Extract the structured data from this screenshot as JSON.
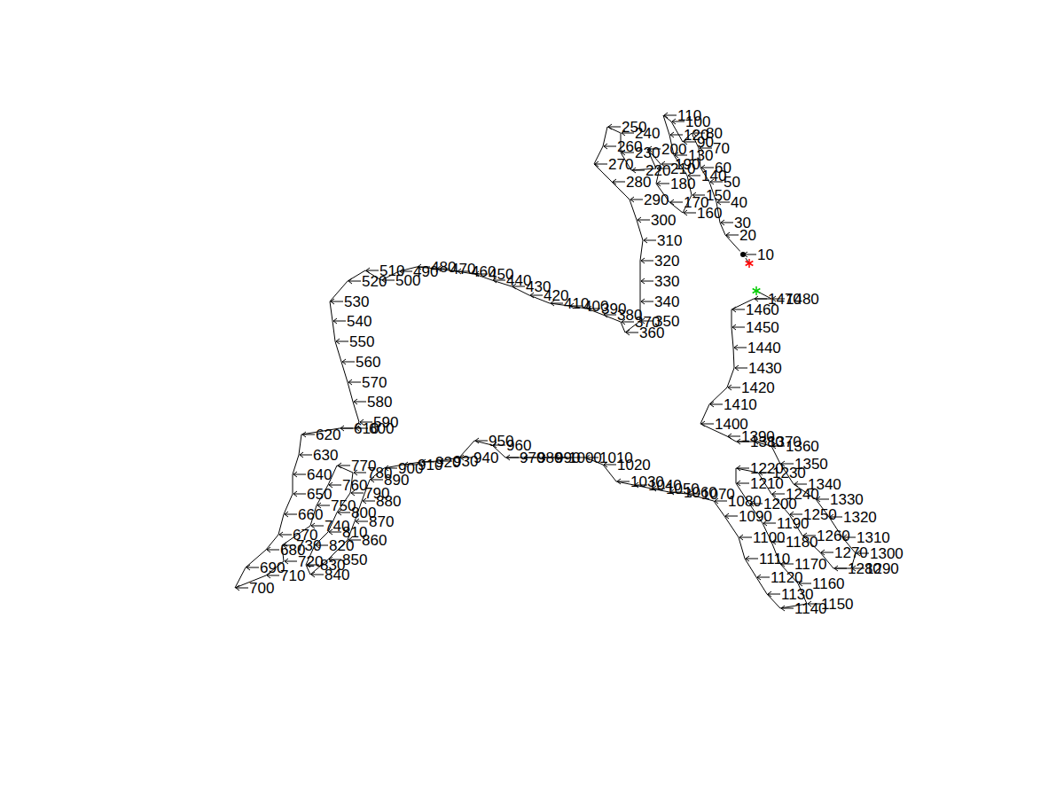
{
  "chart_data": {
    "type": "line",
    "color": "#000000",
    "marker": "none",
    "tick_labels": false,
    "grid": false,
    "xlim": [
      0,
      1200
    ],
    "ylim": [
      0,
      900
    ],
    "x": [
      845,
      838,
      818,
      812,
      808,
      800,
      790,
      788,
      780,
      770,
      757,
      748,
      755,
      760,
      775,
      780,
      770,
      755,
      740,
      745,
      730,
      740,
      712,
      700,
      700,
      685,
      680,
      670,
      690,
      710,
      718,
      725,
      722,
      722,
      722,
      722,
      705,
      700,
      680,
      662,
      642,
      620,
      597,
      577,
      555,
      535,
      515,
      492,
      470,
      450,
      430,
      412,
      392,
      372,
      375,
      378,
      385,
      392,
      398,
      405,
      400,
      383,
      340,
      337,
      330,
      330,
      320,
      314,
      300,
      277,
      265,
      300,
      320,
      318,
      350,
      357,
      370,
      380,
      398,
      395,
      380,
      370,
      355,
      345,
      350,
      370,
      392,
      400,
      408,
      417,
      433,
      455,
      475,
      495,
      518,
      535,
      555,
      570,
      590,
      610,
      625,
      660,
      680,
      695,
      715,
      735,
      755,
      775,
      805,
      817,
      833,
      840,
      853,
      865,
      880,
      910,
      900,
      880,
      870,
      860,
      845,
      830,
      830,
      855,
      870,
      890,
      905,
      925,
      940,
      960,
      965,
      950,
      935,
      920,
      895,
      880,
      870,
      850,
      830,
      820,
      790,
      800,
      820,
      828,
      827,
      825,
      825,
      850,
      870,
      853
    ],
    "y": [
      297,
      287,
      265,
      251,
      228,
      205,
      189,
      167,
      150,
      160,
      137,
      130,
      152,
      175,
      198,
      220,
      240,
      228,
      207,
      185,
      168,
      190,
      192,
      172,
      150,
      143,
      165,
      185,
      205,
      225,
      248,
      271,
      294,
      317,
      340,
      362,
      375,
      363,
      355,
      348,
      345,
      342,
      333,
      323,
      316,
      309,
      306,
      303,
      301,
      306,
      316,
      305,
      317,
      340,
      362,
      385,
      408,
      431,
      453,
      476,
      483,
      483,
      490,
      513,
      535,
      557,
      580,
      603,
      620,
      640,
      663,
      649,
      633,
      615,
      593,
      570,
      547,
      525,
      533,
      556,
      578,
      600,
      615,
      637,
      648,
      631,
      609,
      588,
      565,
      541,
      528,
      524,
      521,
      520,
      516,
      497,
      502,
      516,
      516,
      516,
      516,
      516,
      524,
      543,
      547,
      551,
      555,
      557,
      565,
      582,
      606,
      630,
      651,
      670,
      686,
      681,
      658,
      636,
      611,
      590,
      568,
      545,
      528,
      533,
      557,
      580,
      604,
      623,
      641,
      641,
      624,
      606,
      583,
      563,
      546,
      523,
      503,
      498,
      498,
      492,
      478,
      456,
      437,
      415,
      392,
      369,
      349,
      337,
      337,
      328
    ],
    "labels": [
      null,
      10,
      20,
      30,
      40,
      50,
      60,
      70,
      80,
      90,
      100,
      110,
      120,
      130,
      140,
      150,
      160,
      170,
      180,
      190,
      200,
      210,
      220,
      230,
      240,
      250,
      260,
      270,
      280,
      290,
      300,
      310,
      320,
      330,
      340,
      350,
      360,
      370,
      380,
      390,
      400,
      410,
      420,
      430,
      440,
      450,
      460,
      470,
      480,
      490,
      500,
      510,
      520,
      530,
      540,
      550,
      560,
      570,
      580,
      590,
      600,
      610,
      620,
      630,
      640,
      650,
      660,
      670,
      680,
      690,
      700,
      710,
      720,
      730,
      740,
      750,
      760,
      770,
      780,
      790,
      800,
      810,
      820,
      830,
      840,
      850,
      860,
      870,
      880,
      890,
      900,
      910,
      920,
      930,
      940,
      950,
      960,
      970,
      980,
      990,
      1000,
      1010,
      1020,
      1030,
      1040,
      1050,
      1060,
      1070,
      1080,
      1090,
      1100,
      1110,
      1120,
      1130,
      1140,
      1150,
      1160,
      1170,
      1180,
      1190,
      1200,
      1210,
      1220,
      1230,
      1240,
      1250,
      1260,
      1270,
      1280,
      1290,
      1300,
      1310,
      1320,
      1330,
      1340,
      1350,
      1360,
      1370,
      1380,
      1390,
      1400,
      1410,
      1420,
      1430,
      1440,
      1450,
      1460,
      1470,
      1480,
      null
    ],
    "start": {
      "x": 845,
      "y": 297,
      "color": "#ff0000",
      "marker": "asterisk"
    },
    "end": {
      "x": 853,
      "y": 328,
      "color": "#00cc00",
      "marker": "asterisk"
    }
  }
}
